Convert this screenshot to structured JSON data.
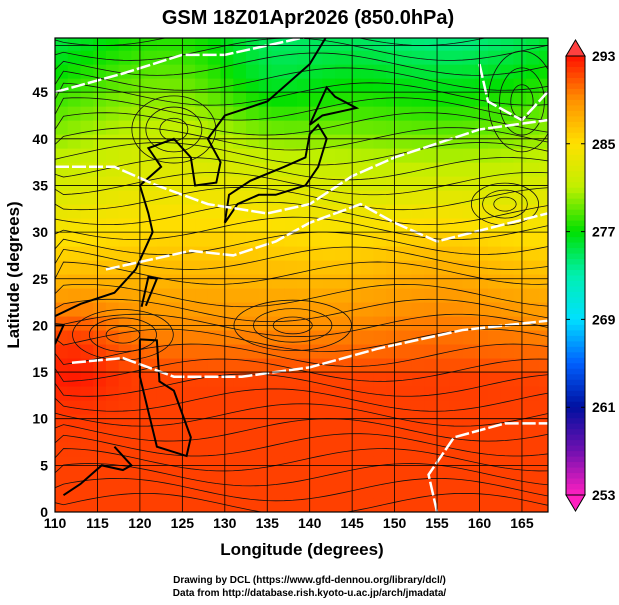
{
  "title": "GSM 18Z01Apr2026 (850.0hPa)",
  "xlabel": "Longitude (degrees)",
  "ylabel": "Latitude  (degrees)",
  "x_ticks": [
    "110",
    "115",
    "120",
    "125",
    "130",
    "135",
    "140",
    "145",
    "150",
    "155",
    "160",
    "165"
  ],
  "y_ticks": [
    "0",
    "5",
    "10",
    "15",
    "20",
    "25",
    "30",
    "35",
    "40",
    "45"
  ],
  "colorbar": {
    "ticks": [
      "293",
      "285",
      "277",
      "269",
      "261",
      "253"
    ],
    "range": [
      253,
      293
    ],
    "colors": [
      "#ff20c0",
      "#7010b0",
      "#0010a0",
      "#0060ff",
      "#00e0ff",
      "#00f0b0",
      "#00e000",
      "#c0f000",
      "#ffe000",
      "#ff9000",
      "#ff1000"
    ]
  },
  "credits": {
    "line1": "Drawing by DCL (https://www.gfd-dennou.org/library/dcl/)",
    "line2": "Data from http://database.rish.kyoto-u.ac.jp/arch/jmadata/"
  },
  "map": {
    "lon_range": [
      110,
      168
    ],
    "lat_range": [
      0,
      50.6
    ],
    "grid": "5 degrees",
    "field": "temperature (K) shaded, streamlines, white contours"
  }
}
